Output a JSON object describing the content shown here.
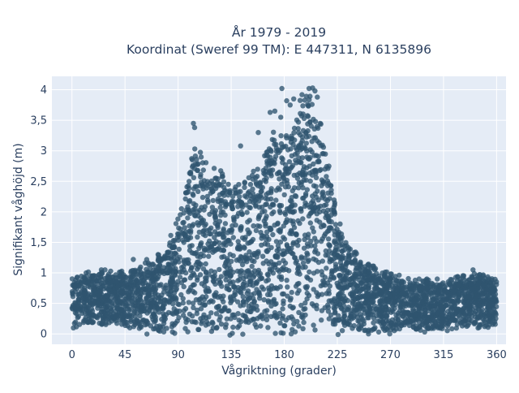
{
  "chart_data": {
    "type": "scatter",
    "title_lines": [
      "År 1979 - 2019",
      "Koordinat (Sweref 99 TM): E 447311, N 6135896"
    ],
    "xlabel": "Vågriktning (grader)",
    "ylabel": "Signifikant våghöjd (m)",
    "xlim": [
      -17,
      368
    ],
    "ylim": [
      -0.17,
      4.22
    ],
    "x_ticks": [
      0,
      45,
      90,
      135,
      180,
      225,
      270,
      315,
      360
    ],
    "x_tick_labels": [
      "0",
      "45",
      "90",
      "135",
      "180",
      "225",
      "270",
      "315",
      "360"
    ],
    "y_ticks": [
      0,
      0.5,
      1,
      1.5,
      2,
      2.5,
      3,
      3.5,
      4
    ],
    "y_tick_labels": [
      "0",
      "0,5",
      "1",
      "1,5",
      "2",
      "2,5",
      "3",
      "3,5",
      "4"
    ],
    "grid": true,
    "legend": "none",
    "series": [
      {
        "name": "",
        "color": "#2f5570",
        "upper_envelope": {
          "x": [
            0,
            10,
            20,
            30,
            40,
            45,
            50,
            60,
            70,
            80,
            85,
            90,
            95,
            100,
            105,
            110,
            120,
            130,
            135,
            140,
            150,
            160,
            165,
            170,
            180,
            190,
            195,
            200,
            205,
            210,
            215,
            220,
            225,
            230,
            240,
            250,
            260,
            270,
            280,
            290,
            300,
            315,
            330,
            345,
            360
          ],
          "y": [
            0.85,
            0.95,
            1.0,
            1.0,
            1.0,
            1.0,
            1.0,
            1.15,
            1.25,
            1.45,
            1.6,
            1.9,
            2.2,
            2.7,
            3.1,
            2.9,
            2.7,
            2.6,
            2.4,
            2.5,
            2.6,
            2.7,
            3.0,
            3.3,
            3.2,
            3.5,
            3.9,
            4.0,
            3.8,
            3.5,
            3.0,
            2.5,
            2.0,
            1.55,
            1.3,
            1.15,
            1.0,
            0.95,
            0.9,
            0.85,
            0.85,
            0.85,
            0.9,
            0.95,
            0.85
          ]
        },
        "lower_envelope": {
          "x": [
            0,
            45,
            60,
            90,
            180,
            270,
            315,
            360
          ],
          "y": [
            0.15,
            0.12,
            0.05,
            0.03,
            0.03,
            0.05,
            0.1,
            0.15
          ]
        },
        "outliers": [
          {
            "x": 103,
            "y": 3.45
          },
          {
            "x": 104,
            "y": 3.38
          },
          {
            "x": 143,
            "y": 3.08
          },
          {
            "x": 158,
            "y": 3.3
          },
          {
            "x": 168,
            "y": 3.63
          },
          {
            "x": 172,
            "y": 3.65
          },
          {
            "x": 177,
            "y": 3.55
          },
          {
            "x": 182,
            "y": 3.82
          },
          {
            "x": 185,
            "y": 3.75
          },
          {
            "x": 178,
            "y": 4.02
          },
          {
            "x": 188,
            "y": 3.85
          },
          {
            "x": 195,
            "y": 3.92
          },
          {
            "x": 201,
            "y": 4.02
          },
          {
            "x": 204,
            "y": 4.03
          },
          {
            "x": 206,
            "y": 3.98
          },
          {
            "x": 208,
            "y": 3.88
          },
          {
            "x": 12,
            "y": 1.0
          },
          {
            "x": 28,
            "y": 1.05
          },
          {
            "x": 52,
            "y": 1.22
          },
          {
            "x": 340,
            "y": 1.05
          },
          {
            "x": 356,
            "y": 0.8
          }
        ]
      }
    ]
  }
}
